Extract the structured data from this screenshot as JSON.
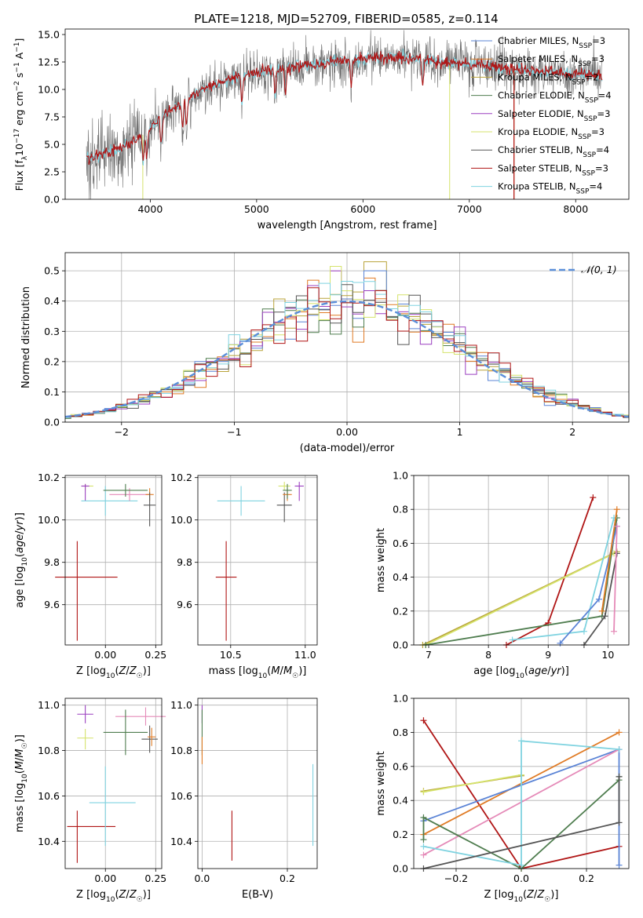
{
  "figure": {
    "title": "PLATE=1218, MJD=52709, FIBERID=0585, z=0.114"
  },
  "colors": {
    "Chabrier MILES": "#5b84d6",
    "Salpeter MILES": "#e07b25",
    "Kroupa MILES": "#b9a33a",
    "Chabrier ELODIE": "#4f7d4f",
    "Salpeter ELODIE": "#9b3fc0",
    "Kroupa ELODIE": "#d5e36b",
    "Chabrier STELIB": "#555555",
    "Salpeter STELIB": "#b01515",
    "Kroupa STELIB": "#7fd3e0",
    "pink": "#e58ab8",
    "gaussian": "#5b8fd9"
  },
  "chart_data": [
    {
      "id": "spectrum",
      "type": "line",
      "title": "PLATE=1218, MJD=52709, FIBERID=0585, z=0.114",
      "xlabel": "wavelength [Angstrom, rest frame]",
      "ylabel": "Flux [f_λ 10^-17 erg cm^-2 s^-1 A^-1]",
      "xlim": [
        3200,
        8500
      ],
      "ylim": [
        0,
        15.5
      ],
      "xticks": [
        4000,
        5000,
        6000,
        7000,
        8000
      ],
      "yticks": [
        0.0,
        2.5,
        5.0,
        7.5,
        10.0,
        12.5,
        15.0
      ],
      "grid": false,
      "legend_position": "right",
      "legend": [
        {
          "imf": "Chabrier",
          "lib": "MILES",
          "n": "3"
        },
        {
          "imf": "Salpeter",
          "lib": "MILES",
          "n": "3"
        },
        {
          "imf": "Kroupa",
          "lib": "MILES",
          "n": "2"
        },
        {
          "imf": "Chabrier",
          "lib": "ELODIE",
          "n": "4"
        },
        {
          "imf": "Salpeter",
          "lib": "ELODIE",
          "n": "3"
        },
        {
          "imf": "Kroupa",
          "lib": "ELODIE",
          "n": "3"
        },
        {
          "imf": "Chabrier",
          "lib": "STELIB",
          "n": "4"
        },
        {
          "imf": "Salpeter",
          "lib": "STELIB",
          "n": "3"
        },
        {
          "imf": "Kroupa",
          "lib": "STELIB",
          "n": "4"
        }
      ],
      "data_range_x": [
        3400,
        8250
      ],
      "continuum_x": [
        3400,
        3600,
        3800,
        3950,
        4100,
        4300,
        4500,
        4800,
        5000,
        5300,
        5600,
        5900,
        6200,
        6500,
        6800,
        7100,
        7400,
        7700,
        8000,
        8250
      ],
      "continuum_y": [
        3.7,
        4.2,
        5.0,
        6.0,
        7.4,
        8.8,
        10.0,
        11.1,
        11.5,
        12.0,
        12.4,
        12.7,
        12.9,
        12.8,
        12.5,
        12.2,
        11.8,
        11.6,
        11.4,
        11.2
      ],
      "absorption_lines_x": [
        3934,
        3969,
        4102,
        4304,
        4341,
        4861,
        5175,
        5270,
        5890,
        6563
      ],
      "spikes_down": [
        {
          "x": 6815,
          "y": 0.0
        },
        {
          "x": 7420,
          "y": 0.0
        },
        {
          "x": 3930,
          "y": 0.0
        }
      ]
    },
    {
      "id": "residuals",
      "type": "histogram",
      "xlabel": "(data-model)/error",
      "ylabel": "Normed distribution",
      "xlim": [
        -2.5,
        2.5
      ],
      "ylim": [
        0,
        0.56
      ],
      "xticks": [
        -2,
        -1,
        0,
        1,
        2
      ],
      "yticks": [
        0.0,
        0.1,
        0.2,
        0.3,
        0.4,
        0.5
      ],
      "grid": true,
      "legend_position": "top-right",
      "legend": "𝒩(0, 1)",
      "bin_width": 0.1,
      "gaussian": {
        "mean": 0,
        "sigma": 1
      },
      "series_note": "nine step histograms approximately following N(0,1) with peak near 0.25 reaching ~0.53"
    },
    {
      "id": "age_vs_Z",
      "type": "errorbar",
      "xlabel": "Z [log10(Z/Z☉)]",
      "ylabel": "age  [log10(age/yr)]",
      "xlim": [
        -0.2,
        0.28
      ],
      "ylim": [
        9.41,
        10.21
      ],
      "xticks": [
        0.0,
        0.25
      ],
      "yticks": [
        9.6,
        9.8,
        10.0,
        10.2
      ],
      "grid": true,
      "points": [
        {
          "c": "Salpeter STELIB",
          "x": -0.14,
          "xerr": [
            0.11,
            0.2
          ],
          "y": 9.73,
          "yerr": [
            0.3,
            0.17
          ]
        },
        {
          "c": "Kroupa ELODIE",
          "x": -0.1,
          "xerr": [
            0.02,
            0.04
          ],
          "y": 10.16,
          "yerr": [
            0.02,
            0.01
          ]
        },
        {
          "c": "Salpeter ELODIE",
          "x": -0.1,
          "xerr": [
            0.02,
            0.02
          ],
          "y": 10.16,
          "yerr": [
            0.07,
            0.01
          ]
        },
        {
          "c": "Kroupa STELIB",
          "x": 0.0,
          "xerr": [
            0.12,
            0.16
          ],
          "y": 10.09,
          "yerr": [
            0.07,
            0.07
          ]
        },
        {
          "c": "pink",
          "x": 0.12,
          "xerr": [
            0.1,
            0.1
          ],
          "y": 10.12,
          "yerr": [
            0.03,
            0.03
          ]
        },
        {
          "c": "Chabrier ELODIE",
          "x": 0.1,
          "xerr": [
            0.11,
            0.11
          ],
          "y": 10.14,
          "yerr": [
            0.03,
            0.03
          ]
        },
        {
          "c": "Salpeter MILES",
          "x": 0.22,
          "xerr": [
            0.02,
            0.02
          ],
          "y": 10.12,
          "yerr": [
            0.03,
            0.03
          ]
        },
        {
          "c": "Chabrier STELIB",
          "x": 0.22,
          "xerr": [
            0.03,
            0.03
          ],
          "y": 10.07,
          "yerr": [
            0.1,
            0.06
          ]
        }
      ]
    },
    {
      "id": "age_vs_mass",
      "type": "errorbar",
      "xlabel": "mass [log10(M/M☉)]",
      "ylabel": "",
      "xlim": [
        10.28,
        11.08
      ],
      "ylim": [
        9.41,
        10.21
      ],
      "xticks": [
        10.5,
        11.0
      ],
      "yticks": [
        9.6,
        9.8,
        10.0,
        10.2
      ],
      "grid": true,
      "points": [
        {
          "c": "Salpeter STELIB",
          "x": 10.47,
          "xerr": [
            0.07,
            0.07
          ],
          "y": 9.73,
          "yerr": [
            0.3,
            0.17
          ]
        },
        {
          "c": "Kroupa STELIB",
          "x": 10.57,
          "xerr": [
            0.16,
            0.16
          ],
          "y": 10.09,
          "yerr": [
            0.07,
            0.07
          ]
        },
        {
          "c": "Kroupa ELODIE",
          "x": 10.86,
          "xerr": [
            0.04,
            0.04
          ],
          "y": 10.16,
          "yerr": [
            0.02,
            0.02
          ]
        },
        {
          "c": "Chabrier STELIB",
          "x": 10.86,
          "xerr": [
            0.05,
            0.05
          ],
          "y": 10.07,
          "yerr": [
            0.08,
            0.06
          ]
        },
        {
          "c": "Salpeter MILES",
          "x": 10.88,
          "xerr": [
            0.03,
            0.03
          ],
          "y": 10.12,
          "yerr": [
            0.03,
            0.03
          ]
        },
        {
          "c": "Chabrier ELODIE",
          "x": 10.88,
          "xerr": [
            0.03,
            0.03
          ],
          "y": 10.14,
          "yerr": [
            0.04,
            0.03
          ]
        },
        {
          "c": "Salpeter ELODIE",
          "x": 10.96,
          "xerr": [
            0.03,
            0.03
          ],
          "y": 10.16,
          "yerr": [
            0.07,
            0.02
          ]
        }
      ]
    },
    {
      "id": "weight_vs_age",
      "type": "line",
      "xlabel": "age  [log10(age/yr)]",
      "ylabel": "mass weight",
      "xlim": [
        6.75,
        10.35
      ],
      "ylim": [
        0,
        1.0
      ],
      "xticks": [
        7,
        8,
        9,
        10
      ],
      "yticks": [
        0.0,
        0.2,
        0.4,
        0.6,
        0.8,
        1.0
      ],
      "grid": true,
      "series": [
        {
          "c": "Salpeter STELIB",
          "x": [
            8.3,
            9.0,
            9.75
          ],
          "y": [
            0.0,
            0.13,
            0.87
          ]
        },
        {
          "c": "Kroupa MILES",
          "x": [
            6.9,
            10.15
          ],
          "y": [
            0.0,
            0.55
          ]
        },
        {
          "c": "Kroupa ELODIE",
          "x": [
            6.95,
            10.1
          ],
          "y": [
            0.0,
            0.54
          ]
        },
        {
          "c": "Chabrier ELODIE",
          "x": [
            6.95,
            9.9,
            10.15
          ],
          "y": [
            0.0,
            0.17,
            0.75
          ]
        },
        {
          "c": "Kroupa STELIB",
          "x": [
            8.4,
            9.6,
            10.1
          ],
          "y": [
            0.03,
            0.08,
            0.75
          ]
        },
        {
          "c": "Chabrier MILES",
          "x": [
            9.2,
            9.85,
            10.15
          ],
          "y": [
            0.01,
            0.27,
            0.7
          ]
        },
        {
          "c": "Salpeter MILES",
          "x": [
            9.9,
            10.15
          ],
          "y": [
            0.2,
            0.8
          ]
        },
        {
          "c": "Chabrier STELIB",
          "x": [
            9.6,
            9.95,
            10.15
          ],
          "y": [
            0.0,
            0.17,
            0.54
          ]
        },
        {
          "c": "pink",
          "x": [
            10.1,
            10.15
          ],
          "y": [
            0.08,
            0.7
          ]
        }
      ]
    },
    {
      "id": "mass_vs_Z",
      "type": "errorbar",
      "xlabel": "Z [log10(Z/Z☉)]",
      "ylabel": "mass [log10(M/M☉)]",
      "xlim": [
        -0.2,
        0.28
      ],
      "ylim": [
        10.28,
        11.03
      ],
      "xticks": [
        0.0,
        0.25
      ],
      "yticks": [
        10.4,
        10.6,
        10.8,
        11.0
      ],
      "grid": true,
      "points": [
        {
          "c": "Salpeter STELIB",
          "x": -0.14,
          "xerr": [
            0.05,
            0.19
          ],
          "y": 10.465,
          "yerr": [
            0.16,
            0.07
          ]
        },
        {
          "c": "Kroupa STELIB",
          "x": 0.0,
          "xerr": [
            0.08,
            0.15
          ],
          "y": 10.57,
          "yerr": [
            0.19,
            0.16
          ]
        },
        {
          "c": "Kroupa ELODIE",
          "x": -0.1,
          "xerr": [
            0.04,
            0.04
          ],
          "y": 10.855,
          "yerr": [
            0.05,
            0.04
          ]
        },
        {
          "c": "Salpeter ELODIE",
          "x": -0.1,
          "xerr": [
            0.04,
            0.04
          ],
          "y": 10.96,
          "yerr": [
            0.04,
            0.04
          ]
        },
        {
          "c": "pink",
          "x": 0.2,
          "xerr": [
            0.15,
            0.1
          ],
          "y": 10.95,
          "yerr": [
            0.04,
            0.04
          ]
        },
        {
          "c": "Chabrier ELODIE",
          "x": 0.1,
          "xerr": [
            0.11,
            0.11
          ],
          "y": 10.88,
          "yerr": [
            0.1,
            0.1
          ]
        },
        {
          "c": "Chabrier STELIB",
          "x": 0.22,
          "xerr": [
            0.04,
            0.04
          ],
          "y": 10.85,
          "yerr": [
            0.06,
            0.06
          ]
        },
        {
          "c": "Salpeter MILES",
          "x": 0.23,
          "xerr": [
            0.02,
            0.02
          ],
          "y": 10.86,
          "yerr": [
            0.04,
            0.04
          ]
        }
      ]
    },
    {
      "id": "mass_vs_ebv",
      "type": "errorbar",
      "xlabel": "E(B-V)",
      "ylabel": "",
      "xlim": [
        -0.01,
        0.27
      ],
      "ylim": [
        10.28,
        11.03
      ],
      "xticks": [
        0.0,
        0.2
      ],
      "yticks": [
        10.4,
        10.6,
        10.8,
        11.0
      ],
      "grid": true,
      "points": [
        {
          "c": "Salpeter STELIB",
          "x": 0.07,
          "xerr": [
            0,
            0
          ],
          "y": 10.365,
          "yerr": [
            0.05,
            0.17
          ]
        },
        {
          "c": "Kroupa STELIB",
          "x": 0.26,
          "xerr": [
            0,
            0
          ],
          "y": 10.57,
          "yerr": [
            0.19,
            0.17
          ]
        },
        {
          "c": "Salpeter ELODIE",
          "x": 0.0,
          "xerr": [
            0,
            0
          ],
          "y": 10.96,
          "yerr": [
            0.04,
            0.04
          ]
        },
        {
          "c": "Chabrier ELODIE",
          "x": 0.0,
          "xerr": [
            0,
            0
          ],
          "y": 10.88,
          "yerr": [
            0.1,
            0.1
          ]
        },
        {
          "c": "Salpeter MILES",
          "x": 0.0,
          "xerr": [
            0,
            0
          ],
          "y": 10.8,
          "yerr": [
            0.06,
            0.06
          ]
        }
      ]
    },
    {
      "id": "weight_vs_Z",
      "type": "line",
      "xlabel": "Z [log10(Z/Z☉)]",
      "ylabel": "mass weight",
      "xlim": [
        -0.33,
        0.33
      ],
      "ylim": [
        0,
        1.0
      ],
      "xticks": [
        -0.2,
        0.0,
        0.2
      ],
      "yticks": [
        0.0,
        0.2,
        0.4,
        0.6,
        0.8,
        1.0
      ],
      "grid": true,
      "series": [
        {
          "c": "Salpeter STELIB",
          "x": [
            -0.3,
            0.0,
            0.3
          ],
          "y": [
            0.87,
            0.0,
            0.13
          ]
        },
        {
          "c": "Salpeter MILES",
          "x": [
            -0.3,
            0.3
          ],
          "y": [
            0.2,
            0.8
          ]
        },
        {
          "c": "Chabrier MILES",
          "x": [
            -0.3,
            0.3,
            0.3
          ],
          "y": [
            0.28,
            0.7,
            0.02
          ]
        },
        {
          "c": "pink",
          "x": [
            -0.3,
            0.3
          ],
          "y": [
            0.08,
            0.7
          ]
        },
        {
          "c": "Kroupa MILES",
          "x": [
            -0.3,
            0.0
          ],
          "y": [
            0.455,
            0.545
          ]
        },
        {
          "c": "Kroupa ELODIE",
          "x": [
            -0.3,
            0.0
          ],
          "y": [
            0.45,
            0.55
          ]
        },
        {
          "c": "Chabrier ELODIE",
          "x": [
            -0.3,
            -0.3,
            0.0,
            0.3,
            0.3
          ],
          "y": [
            0.17,
            0.3,
            0.0,
            0.52,
            0.54
          ]
        },
        {
          "c": "Kroupa STELIB",
          "x": [
            -0.3,
            0.0,
            0.0,
            0.3
          ],
          "y": [
            0.13,
            0.02,
            0.75,
            0.7
          ]
        },
        {
          "c": "Chabrier STELIB",
          "x": [
            -0.3,
            0.3,
            0.3
          ],
          "y": [
            0.0,
            0.27,
            0.54
          ]
        }
      ]
    }
  ]
}
